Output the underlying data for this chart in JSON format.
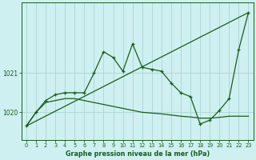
{
  "title": "Graphe pression niveau de la mer (hPa)",
  "bg_color": "#cff0f0",
  "line_color": "#1a5c1a",
  "grid_color": "#b0d8d8",
  "xlim": [
    -0.5,
    23.5
  ],
  "ylim": [
    1019.3,
    1022.8
  ],
  "yticks": [
    1020,
    1021
  ],
  "xticks": [
    0,
    1,
    2,
    3,
    4,
    5,
    6,
    7,
    8,
    9,
    10,
    11,
    12,
    13,
    14,
    15,
    16,
    17,
    18,
    19,
    20,
    21,
    22,
    23
  ],
  "series_diagonal": {
    "x": [
      0,
      23
    ],
    "y": [
      1019.65,
      1022.55
    ]
  },
  "series_flat": {
    "x": [
      0,
      1,
      2,
      3,
      4,
      5,
      6,
      7,
      8,
      9,
      10,
      11,
      12,
      13,
      14,
      15,
      16,
      17,
      18,
      19,
      20,
      21,
      22,
      23
    ],
    "y": [
      1019.65,
      1020.0,
      1020.25,
      1020.3,
      1020.35,
      1020.35,
      1020.3,
      1020.25,
      1020.2,
      1020.15,
      1020.1,
      1020.05,
      1020.0,
      1019.98,
      1019.96,
      1019.93,
      1019.9,
      1019.88,
      1019.85,
      1019.85,
      1019.87,
      1019.9,
      1019.9,
      1019.9
    ]
  },
  "series_main": {
    "x": [
      0,
      1,
      2,
      3,
      4,
      5,
      6,
      7,
      8,
      9,
      10,
      11,
      12,
      13,
      14,
      15,
      16,
      17,
      18,
      19,
      20,
      21,
      22,
      23
    ],
    "y": [
      1019.65,
      1020.0,
      1020.3,
      1020.45,
      1020.5,
      1020.5,
      1020.5,
      1021.0,
      1021.55,
      1021.4,
      1021.05,
      1021.75,
      1021.15,
      1021.1,
      1021.05,
      1020.75,
      1020.5,
      1020.4,
      1019.7,
      1019.8,
      1020.05,
      1020.35,
      1021.6,
      1022.55
    ]
  }
}
